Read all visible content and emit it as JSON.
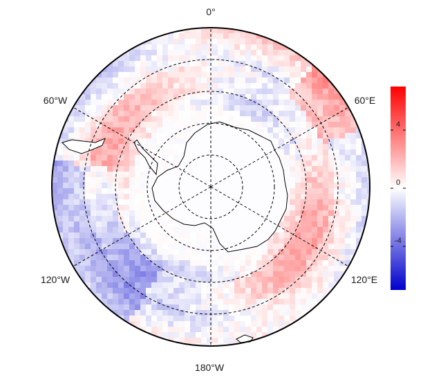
{
  "map": {
    "projection": "south-polar-stereographic",
    "longitude_labels": [
      "0°",
      "60°W",
      "60°E",
      "120°W",
      "120°E",
      "180°W"
    ],
    "latitude_circles": 4,
    "meridian_lines": 6,
    "colormap": [
      "#0000cc",
      "#ffffff",
      "#ff0000"
    ]
  },
  "colorbar": {
    "ticks": [
      "4",
      "0",
      "-4"
    ],
    "tick_values": [
      4,
      0,
      -4
    ],
    "min": -7,
    "max": 7
  }
}
